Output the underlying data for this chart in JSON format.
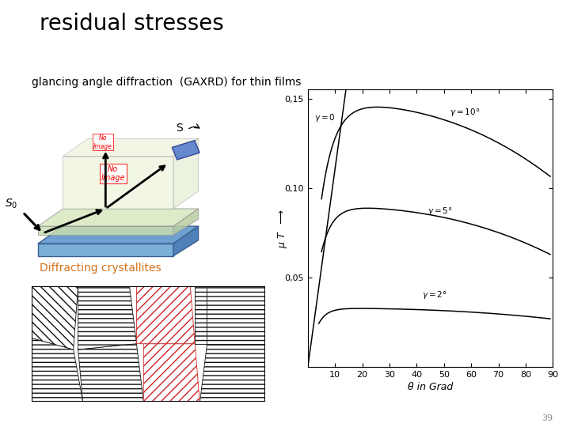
{
  "title": "residual stresses",
  "subtitle": "glancing angle diffraction  (GAXRD) for thin films",
  "title_fontsize": 20,
  "subtitle_fontsize": 10,
  "background_color": "#ffffff",
  "graph_xlabel": "θ in Grad",
  "graph_ylabel": "μ T",
  "graph_yticks": [
    0.05,
    0.1,
    0.15
  ],
  "graph_ytick_labels": [
    "0,05",
    "0,10",
    "0,15"
  ],
  "graph_xticks": [
    10,
    20,
    30,
    40,
    50,
    60,
    70,
    80,
    90
  ],
  "graph_xlim": [
    0,
    90
  ],
  "graph_ylim": [
    0,
    0.155
  ],
  "diffracting_text": "Diffracting crystallites",
  "diffracting_color": "#d4711a",
  "page_number": "39"
}
